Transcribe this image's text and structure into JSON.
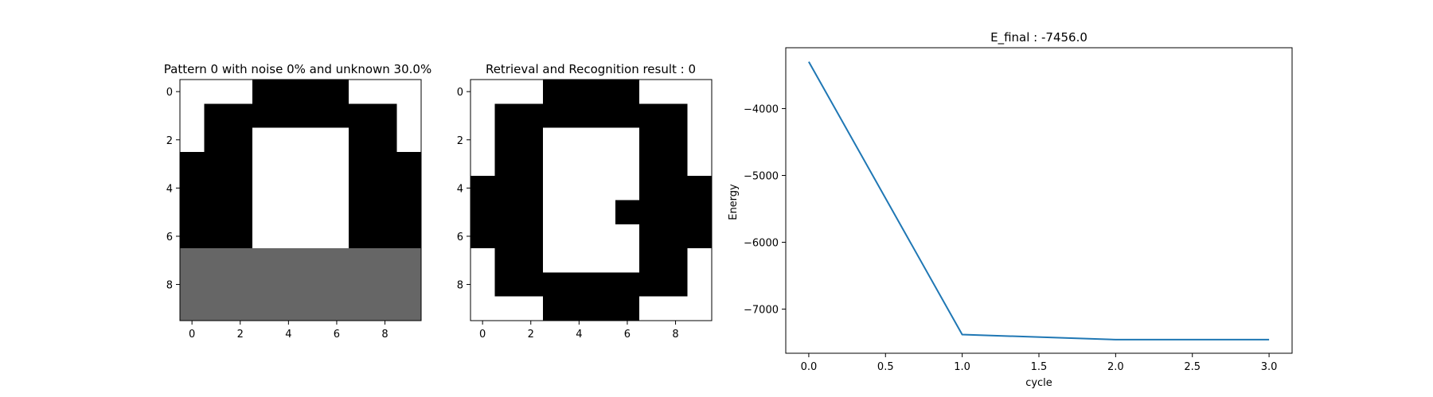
{
  "chart_data": [
    {
      "type": "heatmap",
      "title": "Pattern 0 with noise 0% and unknown 30.0%",
      "xticks": [
        0,
        2,
        4,
        6,
        8
      ],
      "yticks": [
        0,
        2,
        4,
        6,
        8
      ],
      "colors": {
        "-1": "#ffffff",
        "0": "#666666",
        "1": "#000000"
      },
      "grid": [
        [
          -1,
          -1,
          -1,
          1,
          1,
          1,
          1,
          -1,
          -1,
          -1
        ],
        [
          -1,
          1,
          1,
          1,
          1,
          1,
          1,
          1,
          1,
          -1
        ],
        [
          -1,
          1,
          1,
          -1,
          -1,
          -1,
          -1,
          1,
          1,
          -1
        ],
        [
          1,
          1,
          1,
          -1,
          -1,
          -1,
          -1,
          1,
          1,
          1
        ],
        [
          1,
          1,
          1,
          -1,
          -1,
          -1,
          -1,
          1,
          1,
          1
        ],
        [
          1,
          1,
          1,
          -1,
          -1,
          -1,
          -1,
          1,
          1,
          1
        ],
        [
          1,
          1,
          1,
          -1,
          -1,
          -1,
          -1,
          1,
          1,
          1
        ],
        [
          0,
          0,
          0,
          0,
          0,
          0,
          0,
          0,
          0,
          0
        ],
        [
          0,
          0,
          0,
          0,
          0,
          0,
          0,
          0,
          0,
          0
        ],
        [
          0,
          0,
          0,
          0,
          0,
          0,
          0,
          0,
          0,
          0
        ]
      ]
    },
    {
      "type": "heatmap",
      "title": "Retrieval and Recognition result : 0",
      "xticks": [
        0,
        2,
        4,
        6,
        8
      ],
      "yticks": [
        0,
        2,
        4,
        6,
        8
      ],
      "colors": {
        "-1": "#ffffff",
        "0": "#666666",
        "1": "#000000"
      },
      "grid": [
        [
          -1,
          -1,
          -1,
          1,
          1,
          1,
          1,
          -1,
          -1,
          -1
        ],
        [
          -1,
          1,
          1,
          1,
          1,
          1,
          1,
          1,
          1,
          -1
        ],
        [
          -1,
          1,
          1,
          -1,
          -1,
          -1,
          -1,
          1,
          1,
          -1
        ],
        [
          -1,
          1,
          1,
          -1,
          -1,
          -1,
          -1,
          1,
          1,
          -1
        ],
        [
          1,
          1,
          1,
          -1,
          -1,
          -1,
          -1,
          1,
          1,
          1
        ],
        [
          1,
          1,
          1,
          -1,
          -1,
          -1,
          1,
          1,
          1,
          1
        ],
        [
          1,
          1,
          1,
          -1,
          -1,
          -1,
          -1,
          1,
          1,
          1
        ],
        [
          -1,
          1,
          1,
          -1,
          -1,
          -1,
          -1,
          1,
          1,
          -1
        ],
        [
          -1,
          1,
          1,
          1,
          1,
          1,
          1,
          1,
          1,
          -1
        ],
        [
          -1,
          -1,
          -1,
          1,
          1,
          1,
          1,
          -1,
          -1,
          -1
        ]
      ]
    },
    {
      "type": "line",
      "title": "E_final : -7456.0",
      "xlabel": "cycle",
      "ylabel": "Energy",
      "x": [
        0,
        1,
        2,
        3
      ],
      "y": [
        -3300,
        -7380,
        -7456,
        -7456
      ],
      "xlim": [
        -0.15,
        3.15
      ],
      "ylim": [
        -7660,
        -3090
      ],
      "xticks": [
        0.0,
        0.5,
        1.0,
        1.5,
        2.0,
        2.5,
        3.0
      ],
      "xticklabels": [
        "0.0",
        "0.5",
        "1.0",
        "1.5",
        "2.0",
        "2.5",
        "3.0"
      ],
      "yticks": [
        -7000,
        -6000,
        -5000,
        -4000
      ],
      "yticklabels": [
        "−7000",
        "−6000",
        "−5000",
        "−4000"
      ],
      "line_color": "#1f77b4"
    }
  ]
}
